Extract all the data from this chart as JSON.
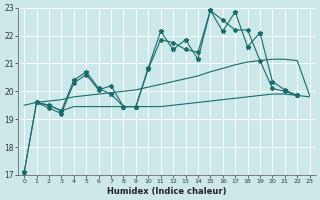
{
  "xlabel": "Humidex (Indice chaleur)",
  "bg_color": "#cce8e8",
  "grid_color": "#ffffff",
  "line_color": "#1a6b6b",
  "xlim": [
    -0.5,
    23.5
  ],
  "ylim": [
    17,
    23
  ],
  "xticks": [
    0,
    1,
    2,
    3,
    4,
    5,
    6,
    7,
    8,
    9,
    10,
    11,
    12,
    13,
    14,
    15,
    16,
    17,
    18,
    19,
    20,
    21,
    22,
    23
  ],
  "yticks": [
    17,
    18,
    19,
    20,
    21,
    22,
    23
  ],
  "line_zigzag_x": [
    0,
    1,
    2,
    3,
    4,
    5,
    6,
    7,
    8,
    9,
    10,
    11,
    12,
    13,
    14,
    15,
    16,
    17,
    18,
    19,
    20,
    21,
    22
  ],
  "line_zigzag_y": [
    17.1,
    19.6,
    19.5,
    19.3,
    20.4,
    20.7,
    20.1,
    19.9,
    19.45,
    19.45,
    20.85,
    22.15,
    21.5,
    21.85,
    21.15,
    22.9,
    22.15,
    22.85,
    21.6,
    22.1,
    20.35,
    20.05,
    19.85
  ],
  "line_smooth_x": [
    0,
    1,
    2,
    3,
    4,
    5,
    6,
    7,
    8,
    9,
    10,
    11,
    12,
    13,
    14,
    15,
    16,
    17,
    18,
    19,
    20,
    21,
    22
  ],
  "line_smooth_y": [
    17.1,
    19.6,
    19.4,
    19.2,
    20.3,
    20.6,
    20.05,
    20.2,
    19.45,
    19.45,
    20.8,
    21.85,
    21.75,
    21.5,
    21.4,
    22.9,
    22.55,
    22.2,
    22.2,
    21.1,
    20.1,
    20.0,
    19.85
  ],
  "line_trend_x": [
    0,
    1,
    2,
    3,
    4,
    5,
    6,
    7,
    8,
    9,
    10,
    11,
    12,
    13,
    14,
    15,
    16,
    17,
    18,
    19,
    20,
    21,
    22,
    23
  ],
  "line_trend_y": [
    19.5,
    19.6,
    19.65,
    19.7,
    19.8,
    19.85,
    19.9,
    19.95,
    20.0,
    20.05,
    20.15,
    20.25,
    20.35,
    20.45,
    20.55,
    20.7,
    20.82,
    20.95,
    21.05,
    21.1,
    21.15,
    21.15,
    21.1,
    19.85
  ],
  "line_flat_x": [
    1,
    2,
    3,
    4,
    5,
    6,
    7,
    8,
    9,
    10,
    11,
    12,
    13,
    14,
    15,
    16,
    17,
    18,
    19,
    20,
    21,
    22,
    23
  ],
  "line_flat_y": [
    19.6,
    19.5,
    19.3,
    19.45,
    19.45,
    19.45,
    19.45,
    19.45,
    19.45,
    19.45,
    19.45,
    19.5,
    19.55,
    19.6,
    19.65,
    19.7,
    19.75,
    19.8,
    19.85,
    19.9,
    19.9,
    19.85,
    19.8
  ]
}
